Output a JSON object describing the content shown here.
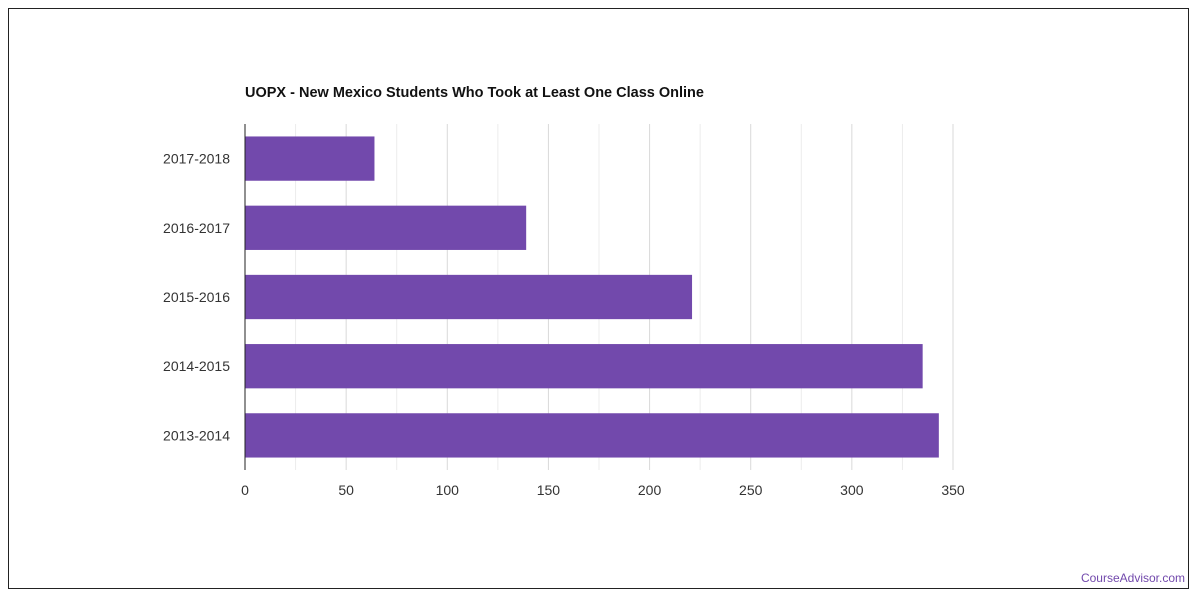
{
  "chart_data": {
    "type": "bar",
    "orientation": "horizontal",
    "title": "UOPX - New Mexico Students Who Took at Least One Class Online",
    "xlabel": "",
    "ylabel": "",
    "categories": [
      "2017-2018",
      "2016-2017",
      "2015-2016",
      "2014-2015",
      "2013-2014"
    ],
    "values": [
      64,
      139,
      221,
      335,
      343
    ],
    "xlim": [
      0,
      350
    ],
    "xticks": [
      0,
      50,
      100,
      150,
      200,
      250,
      300,
      350
    ],
    "grid": true,
    "bar_color": "#7249ac"
  },
  "credit": "CourseAdvisor.com"
}
